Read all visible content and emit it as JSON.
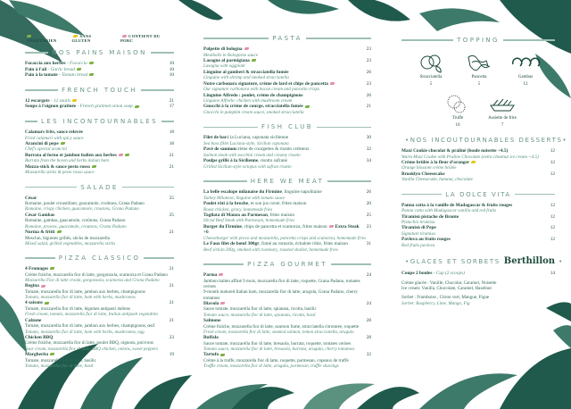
{
  "colors": {
    "accent": "#1f5a4c",
    "vegetarian": "#7cb342",
    "gluten_free": "#e6c619",
    "pork": "#e48fb0"
  },
  "legend": [
    {
      "label": "VÉGÉTARIEN",
      "tag": "veg"
    },
    {
      "label": "SANS GLUTEN",
      "tag": "gf"
    },
    {
      "label": "CONTIENT DU PORC",
      "tag": "pork"
    }
  ],
  "sections": [
    {
      "col": "left",
      "title": "NOS PAINS MAISON",
      "items": [
        {
          "name": "Focaccia aux herbes",
          "sub": "Focaccia",
          "tags": [
            "veg"
          ],
          "price": "10"
        },
        {
          "name": "Pain à l'ail",
          "sub": "Garlic bread",
          "tags": [
            "veg"
          ],
          "price": "10"
        },
        {
          "name": "Pain à la tomate",
          "sub": "Tomato bread",
          "tags": [
            "veg"
          ],
          "price": "10"
        }
      ]
    },
    {
      "col": "left",
      "title": "FRENCH TOUCH",
      "items": [
        {
          "name": "12 escargots",
          "sub": "12 snails",
          "tags": [
            "gf"
          ],
          "price": "21"
        },
        {
          "name": "Soupe à l'oignon gratinée",
          "sub": "French gratined onion soup",
          "tags": [
            "veg"
          ],
          "price": "17"
        }
      ]
    },
    {
      "col": "left",
      "title": "LES INCONTOURNABLES",
      "items": [
        {
          "name": "Calamars frits, sauce relevée",
          "en": "Fried calamari with spicy sauce",
          "price": "18"
        },
        {
          "name": "Arancini di pepe",
          "tags": [
            "veg"
          ],
          "en": "Chef's special arancini",
          "price": "18"
        },
        {
          "name": "Burrata al forno et jambon italien aux herbes",
          "tags": [
            "pork",
            "veg"
          ],
          "en": "Burrata from the hoven and herbs italian ham",
          "price": "21"
        },
        {
          "name": "Mozza-stick & sauce pesto rosso",
          "tags": [
            "veg"
          ],
          "en": "Mozzarella sticks & pesto rosso sauce",
          "price": "21"
        }
      ]
    },
    {
      "col": "left",
      "title": "SALADE",
      "items": [
        {
          "name": "César",
          "fr": "Romaine, poulet croustillant, guacamole, croûtons, Grana Padano",
          "en": "Romaine, crispy chicken, guacamole, croutons, Grana Padano",
          "price": "25"
        },
        {
          "name": "César Gambas",
          "fr": "Romaine, gambas, guacamole, croûtons, Grana Padano",
          "en": "Romaine, prawns, guacamole, croutons, Grana Padano",
          "price": "25"
        },
        {
          "name": "Norma & fritti",
          "tags": [
            "veg"
          ],
          "fr": "Mesclun, légumes grillés, sticks de mozzarella",
          "en": "Mixed salad, grilled vegetables, mozzarella sticks",
          "price": "21"
        }
      ]
    },
    {
      "col": "left",
      "title": "PIZZA CLASSICO",
      "items": [
        {
          "name": "4 Fromages",
          "tags": [
            "veg"
          ],
          "fr": "Crème fraîche, mozzarella fior di latte, gorgonzola, scamorza et Grana Padano",
          "en": "Mozzarella Fior di latte cream, gorgonzola, scamorza and Grana Padano",
          "price": "21"
        },
        {
          "name": "Regina",
          "tags": [
            "pork"
          ],
          "fr": "Tomate, mozzarella fior di latte, jambon aux herbes, champignons",
          "en": "Tomato, mozzarella fior di latte, ham with herbs, mushrooms",
          "price": "21"
        },
        {
          "name": "4 saisons",
          "tags": [
            "veg"
          ],
          "fr": "Tomate, mozzarella fior di latte, légumes antipasti italiens",
          "en": "Fresh cream, tomato, mozzarella fior di latte, Italian antipasti vegetables",
          "price": "21"
        },
        {
          "name": "Calzone",
          "fr": "Tomate, mozzarella fior di latte, jambon aux herbes, champignons, œuf",
          "en": "Tomato, mozzarella fior di latte, ham with herbs, mushrooms, egg",
          "price": "21"
        },
        {
          "name": "Chicken BBQ",
          "fr": "Crème fraîche, mozzarella fior di latte, poulet BBQ, oignons, poivrons",
          "en": "Sour cream, mozzarella fior di latte, BBQ chicken, onions, sweet peppers",
          "price": "23"
        },
        {
          "name": "Margherita",
          "tags": [
            "veg"
          ],
          "fr": "Tomate, mozzarella fior di latte, basilic",
          "en": "Tomato, mozzarella fior di latte, basil",
          "price": "19"
        }
      ]
    },
    {
      "col": "mid",
      "title": "PASTA",
      "items": [
        {
          "name": "Polpette di bologna",
          "tags": [
            "pork"
          ],
          "en": "Meatballs in Bolognese sauce",
          "price": "23"
        },
        {
          "name": "Lasagne al parmigiana",
          "tags": [
            "veg"
          ],
          "en": "Lasagna with eggplant",
          "price": "23"
        },
        {
          "name": "Linguine al gamberi & stracciatella fumée",
          "en": "Linguine with shrimp and smoked stracciatella",
          "price": "26"
        },
        {
          "name": "Notre carbonara signature, crème de lard et chips de pancetta",
          "tags": [
            "pork"
          ],
          "en": "Our signature carbonara with bacon cream and pancetta crisps",
          "price": "23"
        },
        {
          "name": "Linguine Alfredo : poulet, crème de champignons",
          "en": "Linguine Alfredo: chicken with mushroom cream",
          "price": "26"
        },
        {
          "name": "Gnocchi à la crème de courge, stracciatella fumée",
          "tags": [
            "veg"
          ],
          "en": "Gnocchi in pumpkin cream sauce, smoked stracciatella",
          "price": "21"
        }
      ]
    },
    {
      "col": "mid",
      "title": "FISH CLUB",
      "items": [
        {
          "name": "Filet de bar",
          "rest": "à la Luciana, caponata sicilienne",
          "en": "Sea bass fillet Luciana-style, Sicilian caponata",
          "price": "30"
        },
        {
          "name": "Pavé de saumon",
          "rest": "crème de courgettes & risotto crémeux",
          "en": "Salmon steak with zucchini cream and creamy risotto",
          "price": "32"
        },
        {
          "name": "Poulpe grillé à la Sicilienne",
          "rest": ", risotto safrané",
          "en": "Grilled Sicilian-style octopus with safran risotto",
          "price": "34"
        }
      ]
    },
    {
      "col": "mid",
      "title": "HERE WE MEAT",
      "items": [
        {
          "name": "La belle escalope milanaise du Firmine",
          "rest": ", linguine napolitaine",
          "en": "Turkey Milanese, linguine with tomato sauce",
          "price": "26"
        },
        {
          "name": "Poulet rôti à la broche",
          "rest": ", et son jus corsé, frites maison",
          "en": "Roast chicken, gravy, homemade fries",
          "price": "20"
        },
        {
          "name": "Tagliata di Manzo au Parmesan",
          "rest": ", frites maison",
          "en": "Sliced Beef Steak with Parmesan, homemade fries",
          "price": "25"
        },
        {
          "name": "Burger du Firmine",
          "rest": ", chips de pancetta et scamorza, frites maison",
          "tags": [
            "pork"
          ],
          "extra": "Extra Steak +6",
          "en": "Cheeseburger with provo and mozzarella, pancetta crisps and scamorza, homemade fries",
          "price": "23"
        },
        {
          "name": "Le Faux filet de bœuf 300gr",
          "rest": ", fumé au romarin, échalote rôtie, frites maison",
          "en": "Beef sirloin 300g, smoked with rosemary, roasted shallot, homemade fries",
          "price": "31"
        }
      ]
    },
    {
      "col": "mid",
      "title": "PIZZA GOURMET",
      "items": [
        {
          "name": "Parma",
          "tags": [
            "pork"
          ],
          "fr": "Jambon italien affiné 9 mois, mozzarella fior di latte, roquette, Grana Padano, tomates cerises",
          "en2": "9-month matured Italian ham, mozzarella fior di latte, arugula, Grana Padano, cherry tomatoes",
          "price": "24"
        },
        {
          "name": "Diavola",
          "tags": [
            "pork"
          ],
          "fr": "Sauce tomate, mozzarella fior di latte, spianata, ricotta, basilic",
          "en": "Tomato sauce, mozzarella fior di latte, spianata, ricotta, basil",
          "price": "24"
        },
        {
          "name": "Salmone",
          "fr": "Crème fraîche, mozzarella fior di latte, saumon fumé, stracciatella citronnée, roquette",
          "en": "Fresh cream, mozzarella fior di latte, smoked salmon, lemon stracciatella, arugula",
          "price": "28"
        },
        {
          "name": "Buffala",
          "fr": "Sauce tomate, mozzarella fior di latte, bresaola, burrata, roquette, tomates cerises",
          "en": "Tomato sauce, mozzarella fior di latte, bresaola, burrata, arugula, cherry tomatoes",
          "price": "28"
        },
        {
          "name": "Tartufo",
          "tags": [
            "veg"
          ],
          "fr": "Crème à la truffe, mozzarella fior di latte, roquette, parmesan, copeaux de truffe",
          "en": "Truffle cream, mozzarella fior di latte, arugula, parmesan, truffle shavings",
          "price": "32"
        }
      ]
    },
    {
      "col": "right",
      "title": "•NOS INCOUTOURNABLES DESSERTS•",
      "items": [
        {
          "name": "Maxi Cookie chocolat & praliné (boule noisette +4.5)",
          "en": "Warm Maxi Cookie with Praline Chocolate (extra chestnut ice cream +4.5)",
          "price": "12"
        },
        {
          "name": "Crème brûlée à la fleur d'oranger",
          "tags": [
            "gf"
          ],
          "en": "Orange blossom crème brûlée",
          "price": "12"
        },
        {
          "name": "Brooklyn Cheesecake",
          "en": "Vanilla Cheesecake, banana, chocolate",
          "price": "12"
        }
      ]
    },
    {
      "col": "right",
      "title": "LA DOLCE VITA",
      "items": [
        {
          "name": "Panna cotta à la vanille de Madagascar & fruits rouges",
          "en": "Panna cotta with Madagascar vanilla and red fruits",
          "price": "12"
        },
        {
          "name": "Tiramisù pistache de Bronte",
          "en": "Pistachio tiramisu",
          "price": "12"
        },
        {
          "name": "Tiramisù di Pepe",
          "en": "Signature tiramisu",
          "price": "12"
        },
        {
          "name": "Pavlova au fruits rouges",
          "en": "Red fruits pavlova",
          "price": "12"
        }
      ]
    }
  ],
  "topping": {
    "title": "TOPPING",
    "items": [
      {
        "label": "Stracciatella",
        "price": "5",
        "icon": "tomato-basil-icon"
      },
      {
        "label": "Pancetta",
        "price": "5",
        "icon": "bacon-icon"
      },
      {
        "label": "Gambas",
        "price": "12",
        "icon": "shrimp-icon"
      },
      {
        "label": "Truffe",
        "price": "10",
        "icon": "truffle-icon"
      },
      {
        "label": "Assiette de frite",
        "price": "7",
        "icon": "fries-icon"
      }
    ]
  },
  "glaces": {
    "title": "•GLACES ET SORBETS",
    "brand": "Berthillon",
    "title_end": "•",
    "coupe": {
      "name": "Coupe 2 boules",
      "sub": "Cup (2 scoops)",
      "price": "14"
    },
    "creme_fr": "Crème glacée : Vanille, Chocolat, Caramel, Noisette",
    "creme_en": "Ice cream: Vanilla, Chocolate, Caramel, Hazelnut",
    "sorbet_fr": "Sorbet : Framboise , Citron vert, Mangue, Figue",
    "sorbet_en": "Sorbet: Raspberry, Lime, Mango, Fig"
  }
}
